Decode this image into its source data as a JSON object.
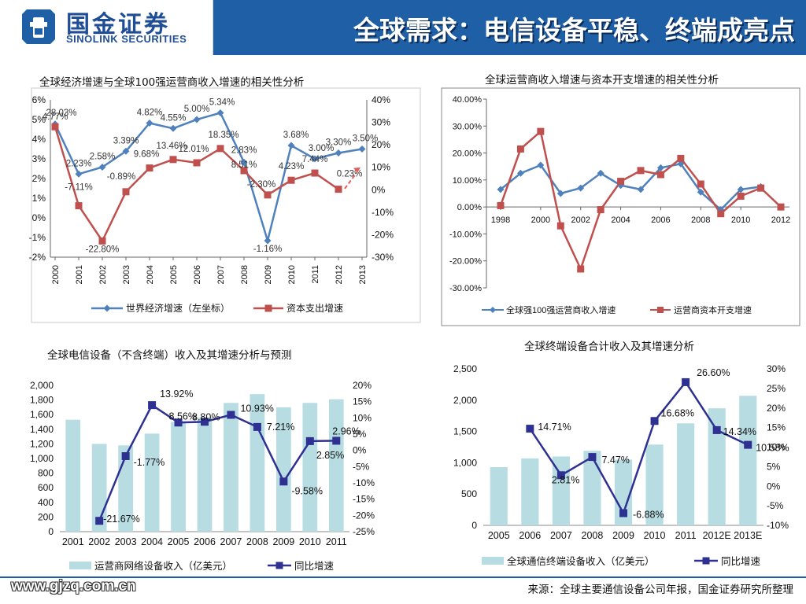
{
  "header": {
    "logo_cn": "国金证券",
    "logo_en": "SINOLINK SECURITIES",
    "title": "全球需求：电信设备平稳、终端成亮点"
  },
  "footer": {
    "site": "www.gjzq.com.cn",
    "source": "来源：全球主要通信设备公司年报，国金证券研究所整理"
  },
  "colors": {
    "header_blue": "#1f5fa6",
    "series_blue": "#4f81bd",
    "series_red": "#c0504d",
    "bar_teal": "#b7dde3",
    "navy": "#2e3192",
    "arrow_red": "#e06060"
  },
  "chart_data": [
    {
      "id": "c1",
      "type": "line",
      "title": "全球经济增速与全球100强运营商收入增速的相关性分析",
      "categories": [
        "2000",
        "2001",
        "2002",
        "2003",
        "2004",
        "2005",
        "2006",
        "2007",
        "2008",
        "2009",
        "2010",
        "2011",
        "2012",
        "2013"
      ],
      "series": [
        {
          "name": "世界经济增速（左坐标）",
          "axis": "left",
          "values": [
            4.77,
            2.23,
            2.58,
            3.39,
            4.82,
            4.55,
            5.0,
            5.34,
            2.83,
            -1.16,
            3.68,
            3.0,
            3.3,
            3.5
          ],
          "labels": [
            "4.77%",
            "2.23%",
            "2.58%",
            "3.39%",
            "4.82%",
            "4.55%",
            "5.00%",
            "5.34%",
            "2.83%",
            "-1.16%",
            "3.68%",
            "3.00%",
            "3.30%",
            "3.50%"
          ]
        },
        {
          "name": "资本支出增速",
          "axis": "right",
          "values": [
            28.03,
            -7.11,
            -22.8,
            -0.89,
            9.68,
            13.46,
            12.01,
            18.35,
            8.51,
            -2.3,
            4.23,
            7.44,
            0.23,
            null
          ],
          "labels": [
            "28.03%",
            "-7.11%",
            "-22.80%",
            "-0.89%",
            "9.68%",
            "13.46%",
            "12.01%",
            "18.35%",
            "8.51%",
            "-2.30%",
            "4.23%",
            "7.44%",
            "0.23%",
            ""
          ]
        }
      ],
      "yleft": {
        "min": -2,
        "max": 6,
        "step": 1,
        "ticks": [
          "-2%",
          "-1%",
          "0%",
          "1%",
          "2%",
          "3%",
          "4%",
          "5%",
          "6%"
        ]
      },
      "yright": {
        "min": -30,
        "max": 40,
        "step": 10,
        "ticks": [
          "-30%",
          "-20%",
          "-10%",
          "0%",
          "10%",
          "20%",
          "30%",
          "40%"
        ]
      },
      "grid": false,
      "legend": "bottom"
    },
    {
      "id": "c2",
      "type": "line",
      "title": "全球运营商收入增速与资本开支增速的相关性分析",
      "x": [
        1998,
        1999,
        2000,
        2001,
        2002,
        2003,
        2004,
        2005,
        2006,
        2007,
        2008,
        2009,
        2010,
        2011,
        2012
      ],
      "xticks": [
        "1998",
        "2000",
        "2002",
        "2004",
        "2006",
        "2008",
        "2010",
        "2012"
      ],
      "series": [
        {
          "name": "全球强100强运营商收入增速",
          "values": [
            6.5,
            12.5,
            15.5,
            5.0,
            7.0,
            12.5,
            8.0,
            6.5,
            14.5,
            16.0,
            5.5,
            -1.0,
            6.5,
            7.5,
            null
          ]
        },
        {
          "name": "运营商资本开支增速",
          "values": [
            0.5,
            21.5,
            28.0,
            -7.0,
            -23.0,
            -1.0,
            9.5,
            13.5,
            12.0,
            18.0,
            8.5,
            -2.5,
            4.0,
            7.0,
            0.0
          ]
        }
      ],
      "y": {
        "min": -30,
        "max": 40,
        "step": 10,
        "ticks": [
          "-30.00%",
          "-20.00%",
          "-10.00%",
          "0.00%",
          "10.00%",
          "20.00%",
          "30.00%",
          "40.00%"
        ]
      },
      "grid": false,
      "legend": "bottom"
    },
    {
      "id": "c3",
      "type": "bar",
      "title": "全球电信设备（不含终端）收入及其增速分析与预测",
      "categories": [
        "2001",
        "2002",
        "2003",
        "2004",
        "2005",
        "2006",
        "2007",
        "2008",
        "2009",
        "2010",
        "2011"
      ],
      "series": [
        {
          "name": "运营商网络设备收入（亿美元）",
          "type": "bar",
          "axis": "left",
          "values": [
            1530,
            1200,
            1180,
            1340,
            1500,
            1560,
            1760,
            1880,
            1700,
            1760,
            1810
          ]
        },
        {
          "name": "同比增速",
          "type": "line",
          "axis": "right",
          "values": [
            null,
            -21.67,
            -1.77,
            13.92,
            8.56,
            8.8,
            10.93,
            7.21,
            -9.58,
            2.85,
            2.96
          ],
          "labels": [
            "",
            "-21.67%",
            "-1.77%",
            "13.92%",
            "8.56%",
            "8.80%",
            "10.93%",
            "7.21%",
            "-9.58%",
            "2.85%",
            "2.96%"
          ]
        }
      ],
      "yleft": {
        "min": 0,
        "max": 2000,
        "step": 200,
        "ticks": [
          "0",
          "200",
          "400",
          "600",
          "800",
          "1,000",
          "1,200",
          "1,400",
          "1,600",
          "1,800",
          "2,000"
        ]
      },
      "yright": {
        "min": -25,
        "max": 20,
        "step": 5,
        "ticks": [
          "-25%",
          "-20%",
          "-15%",
          "-10%",
          "-5%",
          "0%",
          "5%",
          "10%",
          "15%",
          "20%"
        ]
      },
      "grid": false,
      "legend": "bottom"
    },
    {
      "id": "c4",
      "type": "bar",
      "title": "全球终端设备合计收入及其增速分析",
      "categories": [
        "2005",
        "2006",
        "2007",
        "2008",
        "2009",
        "2010",
        "2011",
        "2012E",
        "2013E"
      ],
      "series": [
        {
          "name": "全球通信终端设备收入（亿美元）",
          "type": "bar",
          "axis": "left",
          "values": [
            930,
            1070,
            1100,
            1190,
            1050,
            1290,
            1630,
            1870,
            2070
          ]
        },
        {
          "name": "同比增速",
          "type": "line",
          "axis": "right",
          "values": [
            null,
            14.71,
            2.81,
            7.47,
            -6.88,
            16.68,
            26.6,
            14.34,
            10.58
          ],
          "labels": [
            "",
            "14.71%",
            "2.81%",
            "7.47%",
            "-6.88%",
            "16.68%",
            "26.60%",
            "14.34%",
            "10.58%"
          ]
        }
      ],
      "yleft": {
        "min": 0,
        "max": 2500,
        "step": 500,
        "ticks": [
          "0",
          "500",
          "1,000",
          "1,500",
          "2,000",
          "2,500"
        ]
      },
      "yright": {
        "min": -10,
        "max": 30,
        "step": 5,
        "ticks": [
          "-10%",
          "-5%",
          "0%",
          "5%",
          "10%",
          "15%",
          "20%",
          "25%",
          "30%"
        ]
      },
      "grid": false,
      "legend": "bottom"
    }
  ]
}
